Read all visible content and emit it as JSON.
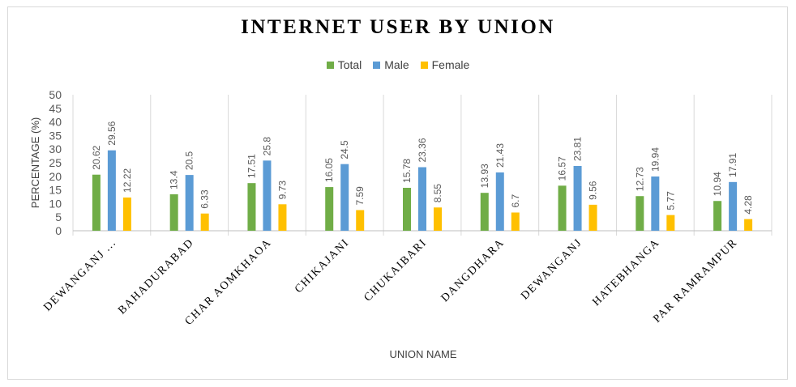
{
  "chart_data": {
    "type": "bar",
    "title": "INTERNET USER BY UNION",
    "xlabel": "UNION NAME",
    "ylabel": "PERCENTAGE (%)",
    "ylim": [
      0,
      50
    ],
    "yticks": [
      0,
      5,
      10,
      15,
      20,
      25,
      30,
      35,
      40,
      45,
      50
    ],
    "grid": "vertical category separators",
    "legend": "top-center",
    "categories": [
      "DEWANGANJ ...",
      "BAHADURABAD",
      "CHAR AOMKHAOA",
      "CHIKAJANI",
      "CHUKAIBARI",
      "DANGDHARA",
      "DEWANGANJ",
      "HATEBHANGA",
      "PAR RAMRAMPUR"
    ],
    "series": [
      {
        "name": "Total",
        "color": "#70ad47",
        "values": [
          20.62,
          13.4,
          17.51,
          16.05,
          15.78,
          13.93,
          16.57,
          12.73,
          10.94
        ]
      },
      {
        "name": "Male",
        "color": "#5b9bd5",
        "values": [
          29.56,
          20.5,
          25.8,
          24.5,
          23.36,
          21.43,
          23.81,
          19.94,
          17.91
        ]
      },
      {
        "name": "Female",
        "color": "#ffc000",
        "values": [
          12.22,
          6.33,
          9.73,
          7.59,
          8.55,
          6.7,
          9.56,
          5.77,
          4.28
        ]
      }
    ]
  }
}
